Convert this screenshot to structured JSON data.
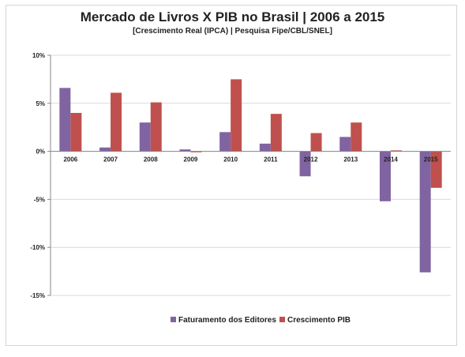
{
  "chart_data": {
    "type": "bar",
    "title": "Mercado de Livros X PIB no Brasil | 2006 a 2015",
    "subtitle": "[Crescimento Real (IPCA) | Pesquisa Fipe/CBL/SNEL]",
    "categories": [
      "2006",
      "2007",
      "2008",
      "2009",
      "2010",
      "2011",
      "2012",
      "2013",
      "2014",
      "2015"
    ],
    "series": [
      {
        "name": "Faturamento dos Editores",
        "color": "#8064a2",
        "values": [
          6.6,
          0.4,
          3.0,
          0.2,
          2.0,
          0.8,
          -2.6,
          1.5,
          -5.2,
          -12.6
        ]
      },
      {
        "name": "Crescimento PIB",
        "color": "#c0504d",
        "values": [
          4.0,
          6.1,
          5.1,
          -0.1,
          7.5,
          3.9,
          1.9,
          3.0,
          0.1,
          -3.8
        ]
      }
    ],
    "y_ticks": [
      "10%",
      "5%",
      "0%",
      "-5%",
      "-10%",
      "-15%"
    ],
    "ylim": [
      -15,
      10
    ],
    "grid": true,
    "legend_position": "bottom"
  }
}
